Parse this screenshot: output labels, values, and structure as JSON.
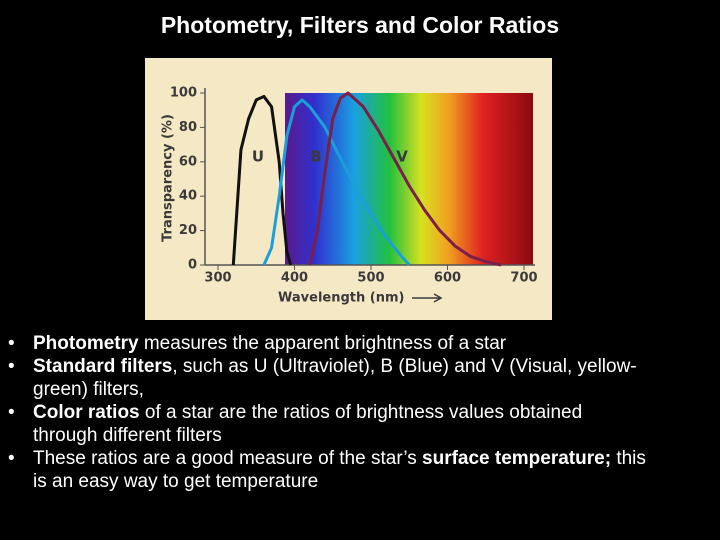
{
  "slide": {
    "title": "Photometry, Filters and Color Ratios",
    "bullets": [
      [
        {
          "text": "Photometry",
          "bold": true
        },
        {
          "text": " measures the apparent brightness of a star"
        }
      ],
      [
        {
          "text": "Standard filters",
          "bold": true
        },
        {
          "text": ", such as U (Ultraviolet), B (Blue) and V (Visual, yellow-green) filters,"
        }
      ],
      [
        {
          "text": "Color ratios",
          "bold": true
        },
        {
          "text": " of a star are the ratios of brightness values obtained through different filters"
        }
      ],
      [
        {
          "text": "These ratios are a good measure of the star’s "
        },
        {
          "text": "surface temperature;",
          "bold": true
        },
        {
          "text": " this is an easy way to get temperature"
        }
      ]
    ]
  },
  "chart_data": {
    "type": "line",
    "x_label": "Wavelength (nm)",
    "y_label": "Transparency (%)",
    "xlim": [
      300,
      700
    ],
    "xticks": [
      300,
      400,
      500,
      600,
      700
    ],
    "ylim": [
      0,
      100
    ],
    "yticks": [
      0,
      20,
      40,
      60,
      80,
      100
    ],
    "series": [
      {
        "name": "U",
        "color": "#111111",
        "x": [
          320,
          330,
          340,
          350,
          360,
          370,
          380,
          385,
          390,
          395
        ],
        "values": [
          0,
          67,
          85,
          96,
          98,
          92,
          60,
          30,
          8,
          0
        ]
      },
      {
        "name": "B",
        "color": "#1a9fd8",
        "x": [
          360,
          370,
          380,
          390,
          400,
          410,
          420,
          440,
          460,
          480,
          500,
          520,
          540,
          550
        ],
        "values": [
          0,
          10,
          40,
          75,
          92,
          96,
          92,
          80,
          62,
          45,
          30,
          16,
          5,
          0
        ]
      },
      {
        "name": "V",
        "color": "#7a1f4a",
        "x": [
          420,
          430,
          440,
          450,
          460,
          470,
          490,
          510,
          530,
          550,
          570,
          590,
          610,
          630,
          650,
          670
        ],
        "values": [
          0,
          20,
          55,
          85,
          97,
          100,
          92,
          78,
          62,
          46,
          32,
          20,
          11,
          5,
          2,
          0
        ]
      }
    ]
  }
}
